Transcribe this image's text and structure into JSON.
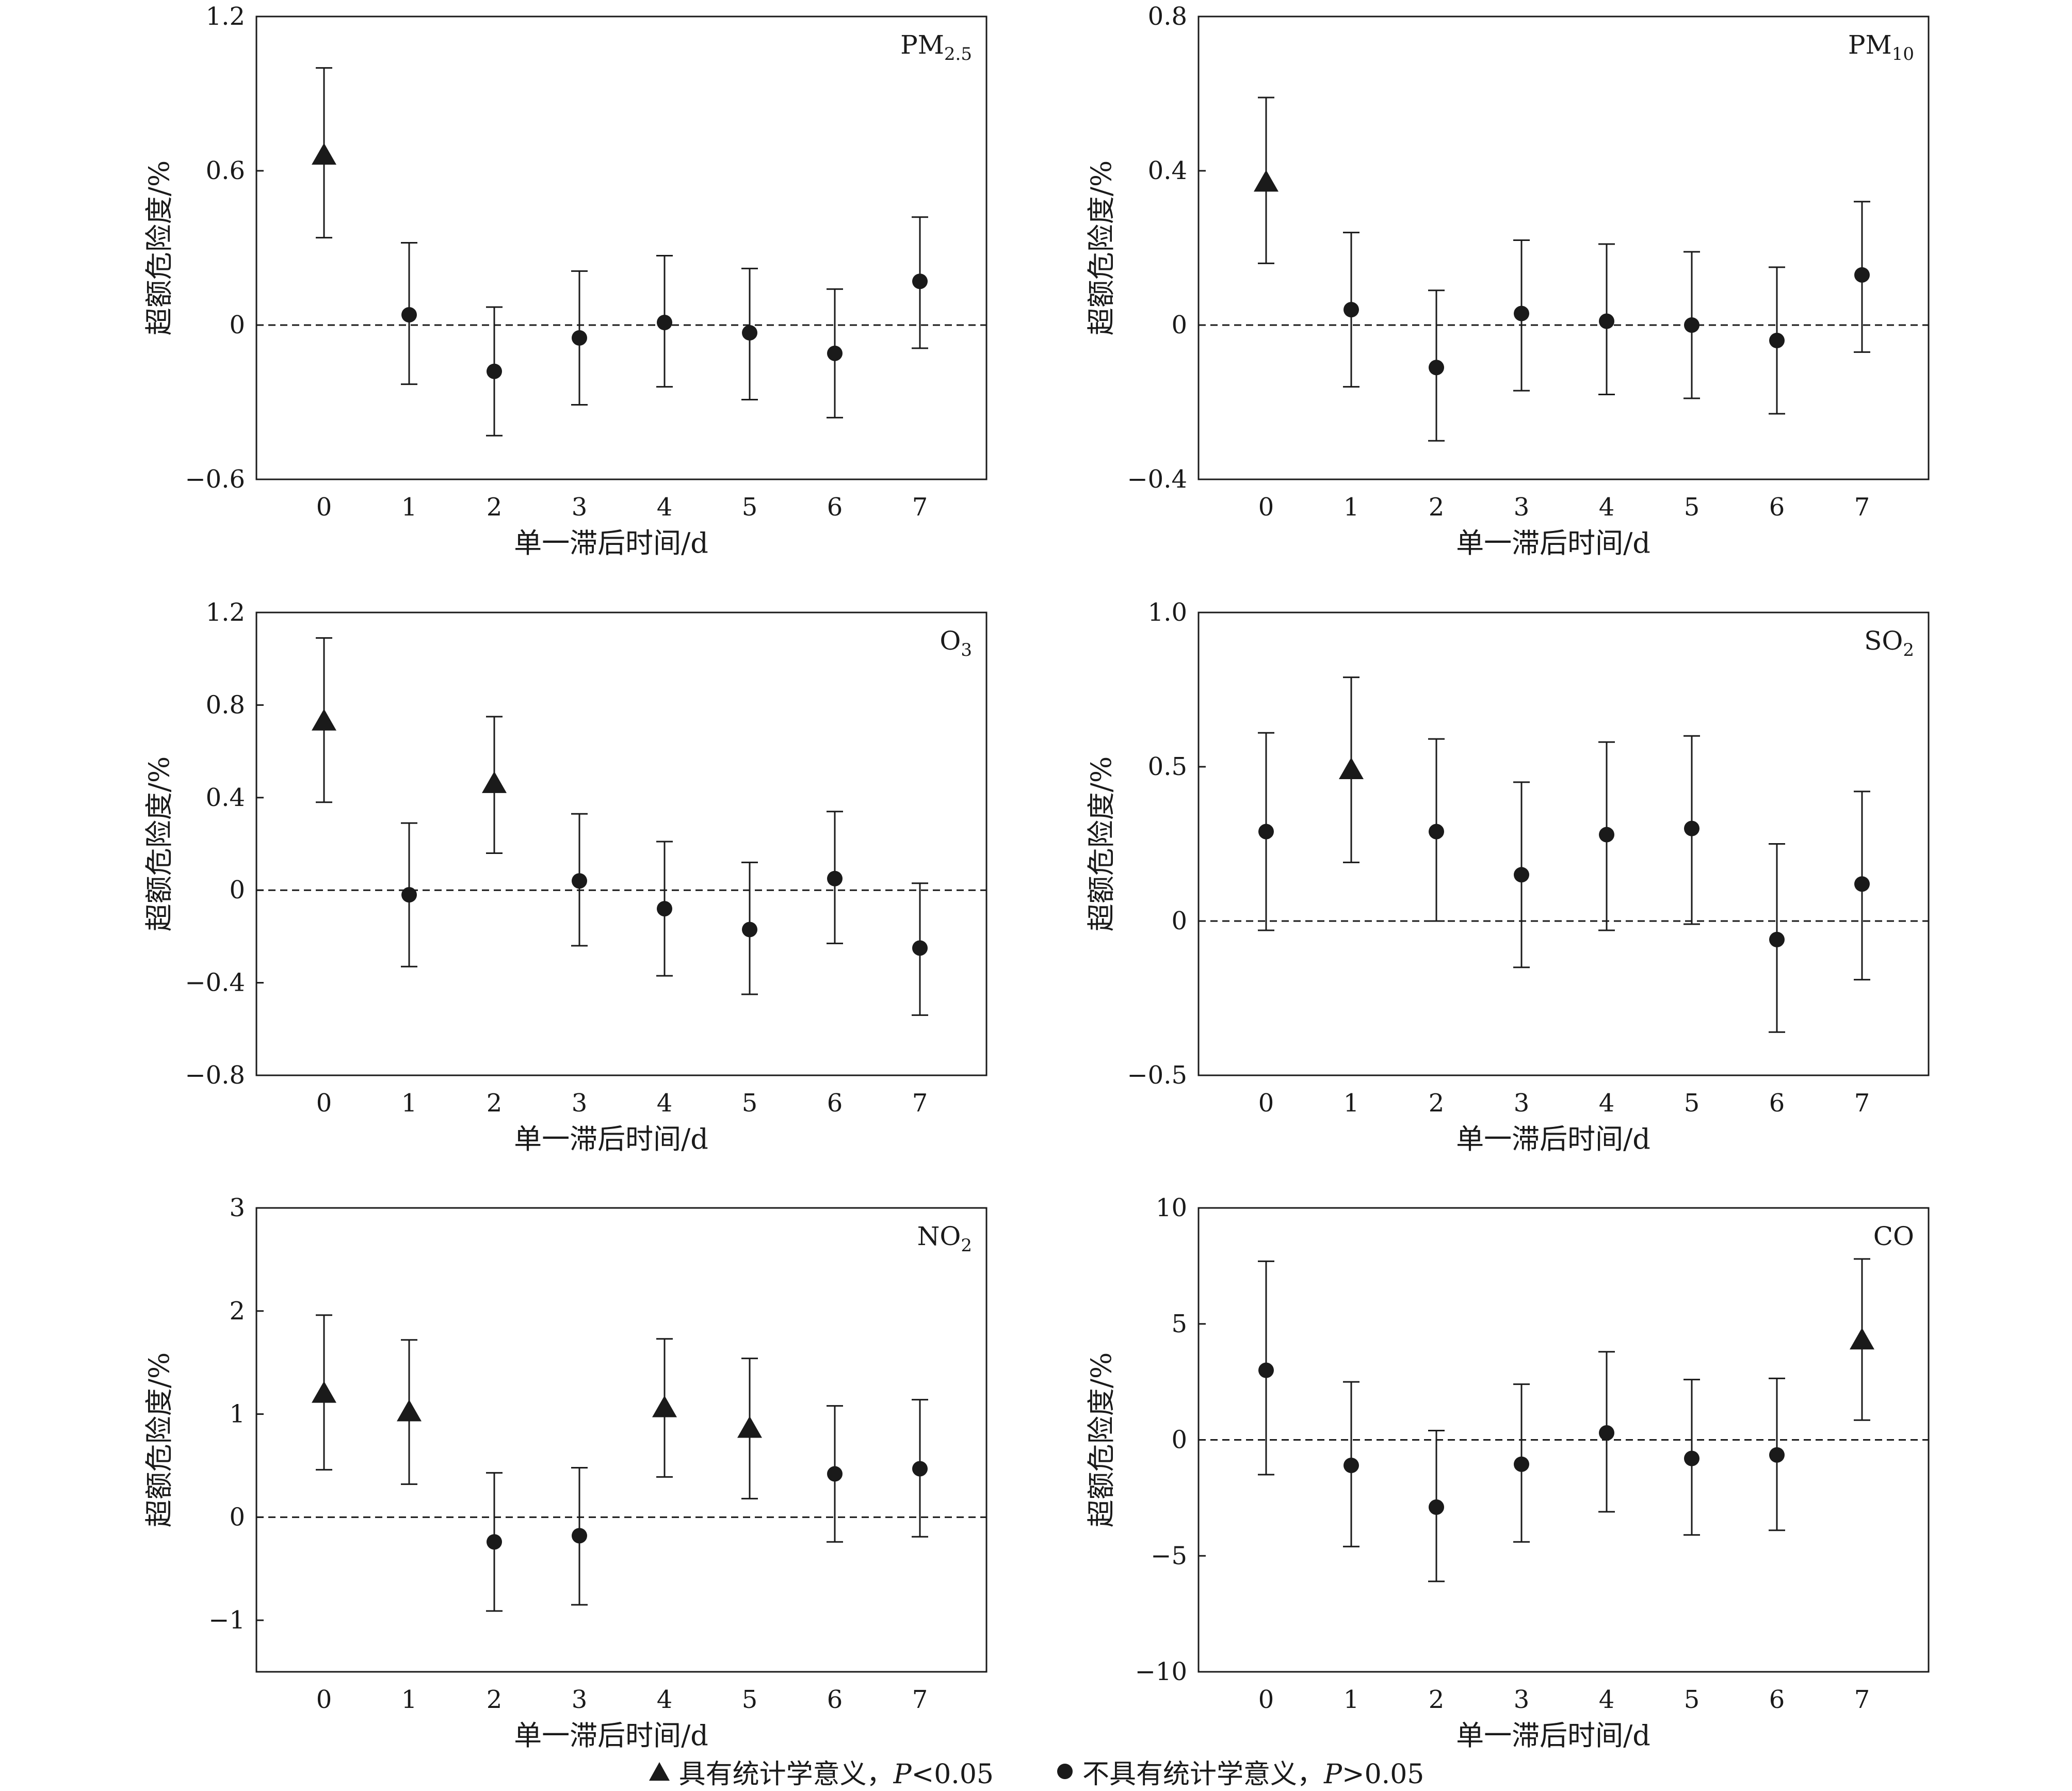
{
  "chart_data": [
    {
      "type": "scatter",
      "panel_label": "PM",
      "panel_label_sub": "2.5",
      "xlabel": "单一滞后时间/d",
      "ylabel": "超额危险度/%",
      "ylim": [
        -0.6,
        1.2
      ],
      "yticks": [
        -0.6,
        0,
        0.6,
        1.2
      ],
      "ytick_labels": [
        "−0.6",
        "0",
        "0.6",
        "1.2"
      ],
      "x": [
        0,
        1,
        2,
        3,
        4,
        5,
        6,
        7
      ],
      "x_labels": [
        "0",
        "1",
        "2",
        "3",
        "4",
        "5",
        "6",
        "7"
      ],
      "values": [
        0.66,
        0.04,
        -0.18,
        -0.05,
        0.01,
        -0.03,
        -0.11,
        0.17
      ],
      "lower": [
        0.34,
        -0.23,
        -0.43,
        -0.31,
        -0.24,
        -0.29,
        -0.36,
        -0.09
      ],
      "upper": [
        1.0,
        0.32,
        0.07,
        0.21,
        0.27,
        0.22,
        0.14,
        0.42
      ],
      "significant": [
        true,
        false,
        false,
        false,
        false,
        false,
        false,
        false
      ],
      "reference_line": 0
    },
    {
      "type": "scatter",
      "panel_label": "PM",
      "panel_label_sub": "10",
      "xlabel": "单一滞后时间/d",
      "ylabel": "超额危险度/%",
      "ylim": [
        -0.4,
        0.8
      ],
      "yticks": [
        -0.4,
        0,
        0.4,
        0.8
      ],
      "ytick_labels": [
        "−0.4",
        "0",
        "0.4",
        "0.8"
      ],
      "x": [
        0,
        1,
        2,
        3,
        4,
        5,
        6,
        7
      ],
      "x_labels": [
        "0",
        "1",
        "2",
        "3",
        "4",
        "5",
        "6",
        "7"
      ],
      "values": [
        0.37,
        0.04,
        -0.11,
        0.03,
        0.01,
        0.0,
        -0.04,
        0.13
      ],
      "lower": [
        0.16,
        -0.16,
        -0.3,
        -0.17,
        -0.18,
        -0.19,
        -0.23,
        -0.07
      ],
      "upper": [
        0.59,
        0.24,
        0.09,
        0.22,
        0.21,
        0.19,
        0.15,
        0.32
      ],
      "significant": [
        true,
        false,
        false,
        false,
        false,
        false,
        false,
        false
      ],
      "reference_line": 0
    },
    {
      "type": "scatter",
      "panel_label": "O",
      "panel_label_sub": "3",
      "xlabel": "单一滞后时间/d",
      "ylabel": "超额危险度/%",
      "ylim": [
        -0.8,
        1.2
      ],
      "yticks": [
        -0.8,
        -0.4,
        0,
        0.4,
        0.8,
        1.2
      ],
      "ytick_labels": [
        "−0.8",
        "−0.4",
        "0",
        "0.4",
        "0.8",
        "1.2"
      ],
      "x": [
        0,
        1,
        2,
        3,
        4,
        5,
        6,
        7
      ],
      "x_labels": [
        "0",
        "1",
        "2",
        "3",
        "4",
        "5",
        "6",
        "7"
      ],
      "values": [
        0.73,
        -0.02,
        0.46,
        0.04,
        -0.08,
        -0.17,
        0.05,
        -0.25
      ],
      "lower": [
        0.38,
        -0.33,
        0.16,
        -0.24,
        -0.37,
        -0.45,
        -0.23,
        -0.54
      ],
      "upper": [
        1.09,
        0.29,
        0.75,
        0.33,
        0.21,
        0.12,
        0.34,
        0.03
      ],
      "significant": [
        true,
        false,
        true,
        false,
        false,
        false,
        false,
        false
      ],
      "reference_line": 0
    },
    {
      "type": "scatter",
      "panel_label": "SO",
      "panel_label_sub": "2",
      "xlabel": "单一滞后时间/d",
      "ylabel": "超额危险度/%",
      "ylim": [
        -0.5,
        1.0
      ],
      "yticks": [
        -0.5,
        0,
        0.5,
        1.0
      ],
      "ytick_labels": [
        "−0.5",
        "0",
        "0.5",
        "1.0"
      ],
      "x": [
        0,
        1,
        2,
        3,
        4,
        5,
        6,
        7
      ],
      "x_labels": [
        "0",
        "1",
        "2",
        "3",
        "4",
        "5",
        "6",
        "7"
      ],
      "values": [
        0.29,
        0.49,
        0.29,
        0.15,
        0.28,
        0.3,
        -0.06,
        0.12
      ],
      "lower": [
        -0.03,
        0.19,
        0.0,
        -0.15,
        -0.03,
        -0.01,
        -0.36,
        -0.19
      ],
      "upper": [
        0.61,
        0.79,
        0.59,
        0.45,
        0.58,
        0.6,
        0.25,
        0.42
      ],
      "significant": [
        false,
        true,
        false,
        false,
        false,
        false,
        false,
        false
      ],
      "reference_line": 0
    },
    {
      "type": "scatter",
      "panel_label": "NO",
      "panel_label_sub": "2",
      "xlabel": "单一滞后时间/d",
      "ylabel": "超额危险度/%",
      "ylim": [
        -1.5,
        3
      ],
      "yticks": [
        -1,
        0,
        1,
        2,
        3
      ],
      "ytick_labels": [
        "−1",
        "0",
        "1",
        "2",
        "3"
      ],
      "x": [
        0,
        1,
        2,
        3,
        4,
        5,
        6,
        7
      ],
      "x_labels": [
        "0",
        "1",
        "2",
        "3",
        "4",
        "5",
        "6",
        "7"
      ],
      "values": [
        1.2,
        1.02,
        -0.24,
        -0.18,
        1.06,
        0.86,
        0.42,
        0.47
      ],
      "lower": [
        0.46,
        0.32,
        -0.91,
        -0.85,
        0.39,
        0.18,
        -0.24,
        -0.19
      ],
      "upper": [
        1.96,
        1.72,
        0.43,
        0.48,
        1.73,
        1.54,
        1.08,
        1.14
      ],
      "significant": [
        true,
        true,
        false,
        false,
        true,
        true,
        false,
        false
      ],
      "reference_line": 0
    },
    {
      "type": "scatter",
      "panel_label": "CO",
      "panel_label_sub": "",
      "xlabel": "单一滞后时间/d",
      "ylabel": "超额危险度/%",
      "ylim": [
        -10,
        10
      ],
      "yticks": [
        -10,
        -5,
        0,
        5,
        10
      ],
      "ytick_labels": [
        "−10",
        "−5",
        "0",
        "5",
        "10"
      ],
      "x": [
        0,
        1,
        2,
        3,
        4,
        5,
        6,
        7
      ],
      "x_labels": [
        "0",
        "1",
        "2",
        "3",
        "4",
        "5",
        "6",
        "7"
      ],
      "values": [
        3.0,
        -1.1,
        -2.9,
        -1.05,
        0.3,
        -0.8,
        -0.65,
        4.3
      ],
      "lower": [
        -1.5,
        -4.6,
        -6.1,
        -4.4,
        -3.1,
        -4.1,
        -3.9,
        0.85
      ],
      "upper": [
        7.7,
        2.5,
        0.4,
        2.4,
        3.8,
        2.6,
        2.65,
        7.8
      ],
      "significant": [
        false,
        false,
        false,
        false,
        false,
        false,
        false,
        true
      ],
      "reference_line": 0
    }
  ],
  "legend": {
    "sig_text": "具有统计学意义，",
    "sig_p": "P",
    "sig_cond": "<0.05",
    "nonsig_text": "不具有统计学意义，",
    "nonsig_p": "P",
    "nonsig_cond": ">0.05"
  }
}
